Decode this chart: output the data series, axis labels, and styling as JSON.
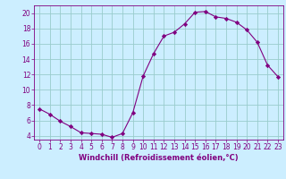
{
  "x": [
    0,
    1,
    2,
    3,
    4,
    5,
    6,
    7,
    8,
    9,
    10,
    11,
    12,
    13,
    14,
    15,
    16,
    17,
    18,
    19,
    20,
    21,
    22,
    23
  ],
  "y": [
    7.5,
    6.8,
    5.9,
    5.2,
    4.4,
    4.3,
    4.2,
    3.8,
    4.3,
    7.0,
    11.8,
    14.7,
    17.0,
    17.5,
    18.6,
    20.1,
    20.2,
    19.5,
    19.3,
    18.8,
    17.8,
    16.2,
    13.2,
    11.7
  ],
  "line_color": "#800080",
  "marker": "D",
  "markersize": 2.2,
  "linewidth": 0.8,
  "bg_color": "#cceeff",
  "grid_color": "#99cccc",
  "xlabel": "Windchill (Refroidissement éolien,°C)",
  "xlabel_color": "#800080",
  "xlabel_fontsize": 6.0,
  "tick_color": "#800080",
  "tick_fontsize": 5.5,
  "xlim": [
    -0.5,
    23.5
  ],
  "ylim": [
    3.5,
    21.0
  ],
  "yticks": [
    4,
    6,
    8,
    10,
    12,
    14,
    16,
    18,
    20
  ],
  "xticks": [
    0,
    1,
    2,
    3,
    4,
    5,
    6,
    7,
    8,
    9,
    10,
    11,
    12,
    13,
    14,
    15,
    16,
    17,
    18,
    19,
    20,
    21,
    22,
    23
  ]
}
